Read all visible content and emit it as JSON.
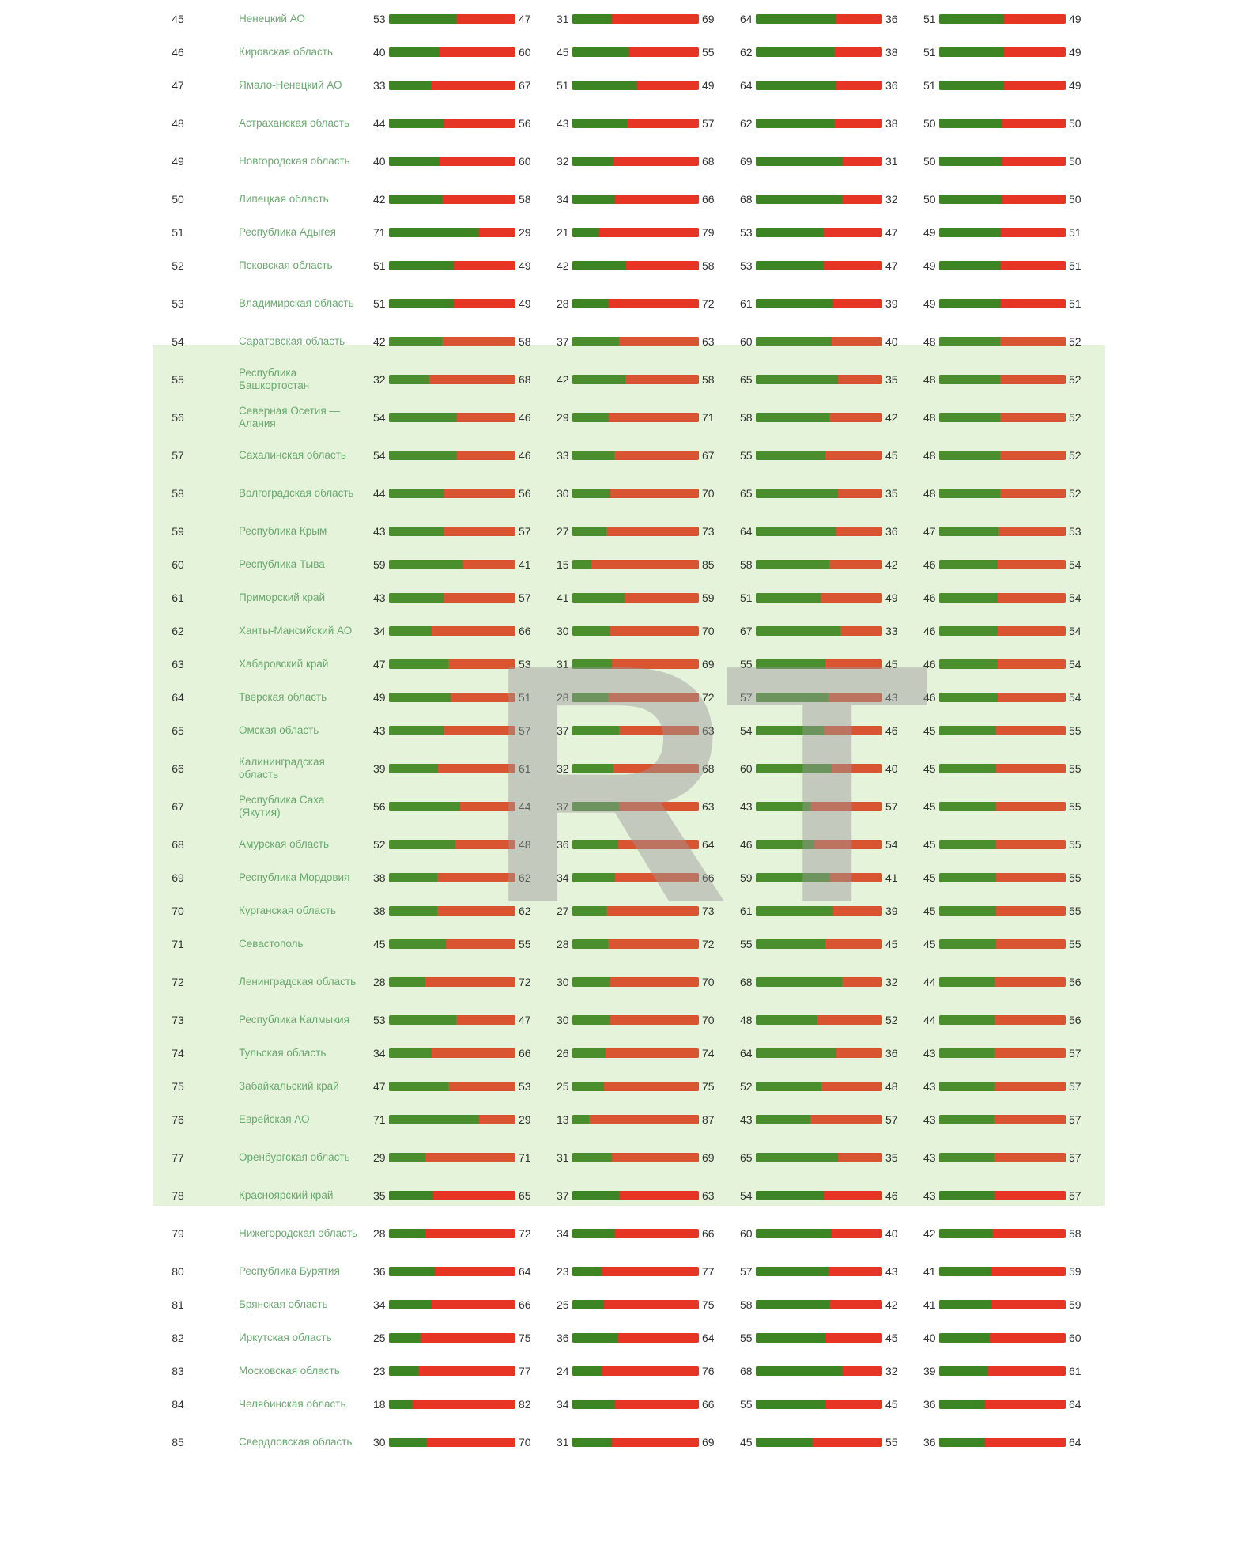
{
  "chart_data": {
    "type": "table",
    "columns_per_row": 4,
    "rows": [
      {
        "rank": 45,
        "region": "Ненецкий АО",
        "metrics": [
          [
            53,
            47
          ],
          [
            31,
            69
          ],
          [
            64,
            36
          ],
          [
            51,
            49
          ]
        ]
      },
      {
        "rank": 46,
        "region": "Кировская область",
        "metrics": [
          [
            40,
            60
          ],
          [
            45,
            55
          ],
          [
            62,
            38
          ],
          [
            51,
            49
          ]
        ]
      },
      {
        "rank": 47,
        "region": "Ямало-Ненецкий АО",
        "metrics": [
          [
            33,
            67
          ],
          [
            51,
            49
          ],
          [
            64,
            36
          ],
          [
            51,
            49
          ]
        ]
      },
      {
        "rank": 48,
        "region": "Астраханская область",
        "metrics": [
          [
            44,
            56
          ],
          [
            43,
            57
          ],
          [
            62,
            38
          ],
          [
            50,
            50
          ]
        ]
      },
      {
        "rank": 49,
        "region": "Новгородская область",
        "metrics": [
          [
            40,
            60
          ],
          [
            32,
            68
          ],
          [
            69,
            31
          ],
          [
            50,
            50
          ]
        ]
      },
      {
        "rank": 50,
        "region": "Липецкая область",
        "metrics": [
          [
            42,
            58
          ],
          [
            34,
            66
          ],
          [
            68,
            32
          ],
          [
            50,
            50
          ]
        ]
      },
      {
        "rank": 51,
        "region": "Республика Адыгея",
        "metrics": [
          [
            71,
            29
          ],
          [
            21,
            79
          ],
          [
            53,
            47
          ],
          [
            49,
            51
          ]
        ]
      },
      {
        "rank": 52,
        "region": "Псковская область",
        "metrics": [
          [
            51,
            49
          ],
          [
            42,
            58
          ],
          [
            53,
            47
          ],
          [
            49,
            51
          ]
        ]
      },
      {
        "rank": 53,
        "region": "Владимирская область",
        "metrics": [
          [
            51,
            49
          ],
          [
            28,
            72
          ],
          [
            61,
            39
          ],
          [
            49,
            51
          ]
        ]
      },
      {
        "rank": 54,
        "region": "Саратовская область",
        "metrics": [
          [
            42,
            58
          ],
          [
            37,
            63
          ],
          [
            60,
            40
          ],
          [
            48,
            52
          ]
        ]
      },
      {
        "rank": 55,
        "region": "Республика Башкортостан",
        "metrics": [
          [
            32,
            68
          ],
          [
            42,
            58
          ],
          [
            65,
            35
          ],
          [
            48,
            52
          ]
        ]
      },
      {
        "rank": 56,
        "region": "Северная Осетия — Алания",
        "metrics": [
          [
            54,
            46
          ],
          [
            29,
            71
          ],
          [
            58,
            42
          ],
          [
            48,
            52
          ]
        ]
      },
      {
        "rank": 57,
        "region": "Сахалинская область",
        "metrics": [
          [
            54,
            46
          ],
          [
            33,
            67
          ],
          [
            55,
            45
          ],
          [
            48,
            52
          ]
        ]
      },
      {
        "rank": 58,
        "region": "Волгоградская область",
        "metrics": [
          [
            44,
            56
          ],
          [
            30,
            70
          ],
          [
            65,
            35
          ],
          [
            48,
            52
          ]
        ]
      },
      {
        "rank": 59,
        "region": "Республика Крым",
        "metrics": [
          [
            43,
            57
          ],
          [
            27,
            73
          ],
          [
            64,
            36
          ],
          [
            47,
            53
          ]
        ]
      },
      {
        "rank": 60,
        "region": "Республика Тыва",
        "metrics": [
          [
            59,
            41
          ],
          [
            15,
            85
          ],
          [
            58,
            42
          ],
          [
            46,
            54
          ]
        ]
      },
      {
        "rank": 61,
        "region": "Приморский край",
        "metrics": [
          [
            43,
            57
          ],
          [
            41,
            59
          ],
          [
            51,
            49
          ],
          [
            46,
            54
          ]
        ]
      },
      {
        "rank": 62,
        "region": "Ханты-Мансийский АО",
        "metrics": [
          [
            34,
            66
          ],
          [
            30,
            70
          ],
          [
            67,
            33
          ],
          [
            46,
            54
          ]
        ]
      },
      {
        "rank": 63,
        "region": "Хабаровский край",
        "metrics": [
          [
            47,
            53
          ],
          [
            31,
            69
          ],
          [
            55,
            45
          ],
          [
            46,
            54
          ]
        ]
      },
      {
        "rank": 64,
        "region": "Тверская область",
        "metrics": [
          [
            49,
            51
          ],
          [
            28,
            72
          ],
          [
            57,
            43
          ],
          [
            46,
            54
          ]
        ]
      },
      {
        "rank": 65,
        "region": "Омская область",
        "metrics": [
          [
            43,
            57
          ],
          [
            37,
            63
          ],
          [
            54,
            46
          ],
          [
            45,
            55
          ]
        ]
      },
      {
        "rank": 66,
        "region": "Калининградская область",
        "metrics": [
          [
            39,
            61
          ],
          [
            32,
            68
          ],
          [
            60,
            40
          ],
          [
            45,
            55
          ]
        ]
      },
      {
        "rank": 67,
        "region": "Республика Саха (Якутия)",
        "metrics": [
          [
            56,
            44
          ],
          [
            37,
            63
          ],
          [
            43,
            57
          ],
          [
            45,
            55
          ]
        ]
      },
      {
        "rank": 68,
        "region": "Амурская область",
        "metrics": [
          [
            52,
            48
          ],
          [
            36,
            64
          ],
          [
            46,
            54
          ],
          [
            45,
            55
          ]
        ]
      },
      {
        "rank": 69,
        "region": "Республика Мордовия",
        "metrics": [
          [
            38,
            62
          ],
          [
            34,
            66
          ],
          [
            59,
            41
          ],
          [
            45,
            55
          ]
        ]
      },
      {
        "rank": 70,
        "region": "Курганская область",
        "metrics": [
          [
            38,
            62
          ],
          [
            27,
            73
          ],
          [
            61,
            39
          ],
          [
            45,
            55
          ]
        ]
      },
      {
        "rank": 71,
        "region": "Севастополь",
        "metrics": [
          [
            45,
            55
          ],
          [
            28,
            72
          ],
          [
            55,
            45
          ],
          [
            45,
            55
          ]
        ]
      },
      {
        "rank": 72,
        "region": "Ленинградская область",
        "metrics": [
          [
            28,
            72
          ],
          [
            30,
            70
          ],
          [
            68,
            32
          ],
          [
            44,
            56
          ]
        ]
      },
      {
        "rank": 73,
        "region": "Республика Калмыкия",
        "metrics": [
          [
            53,
            47
          ],
          [
            30,
            70
          ],
          [
            48,
            52
          ],
          [
            44,
            56
          ]
        ]
      },
      {
        "rank": 74,
        "region": "Тульская область",
        "metrics": [
          [
            34,
            66
          ],
          [
            26,
            74
          ],
          [
            64,
            36
          ],
          [
            43,
            57
          ]
        ]
      },
      {
        "rank": 75,
        "region": "Забайкальский край",
        "metrics": [
          [
            47,
            53
          ],
          [
            25,
            75
          ],
          [
            52,
            48
          ],
          [
            43,
            57
          ]
        ]
      },
      {
        "rank": 76,
        "region": "Еврейская АО",
        "metrics": [
          [
            71,
            29
          ],
          [
            13,
            87
          ],
          [
            43,
            57
          ],
          [
            43,
            57
          ]
        ]
      },
      {
        "rank": 77,
        "region": "Оренбургская область",
        "metrics": [
          [
            29,
            71
          ],
          [
            31,
            69
          ],
          [
            65,
            35
          ],
          [
            43,
            57
          ]
        ]
      },
      {
        "rank": 78,
        "region": "Красноярский край",
        "metrics": [
          [
            35,
            65
          ],
          [
            37,
            63
          ],
          [
            54,
            46
          ],
          [
            43,
            57
          ]
        ]
      },
      {
        "rank": 79,
        "region": "Нижегородская область",
        "metrics": [
          [
            28,
            72
          ],
          [
            34,
            66
          ],
          [
            60,
            40
          ],
          [
            42,
            58
          ]
        ]
      },
      {
        "rank": 80,
        "region": "Республика Бурятия",
        "metrics": [
          [
            36,
            64
          ],
          [
            23,
            77
          ],
          [
            57,
            43
          ],
          [
            41,
            59
          ]
        ]
      },
      {
        "rank": 81,
        "region": "Брянская область",
        "metrics": [
          [
            34,
            66
          ],
          [
            25,
            75
          ],
          [
            58,
            42
          ],
          [
            41,
            59
          ]
        ]
      },
      {
        "rank": 82,
        "region": "Иркутская область",
        "metrics": [
          [
            25,
            75
          ],
          [
            36,
            64
          ],
          [
            55,
            45
          ],
          [
            40,
            60
          ]
        ]
      },
      {
        "rank": 83,
        "region": "Московская область",
        "metrics": [
          [
            23,
            77
          ],
          [
            24,
            76
          ],
          [
            68,
            32
          ],
          [
            39,
            61
          ]
        ]
      },
      {
        "rank": 84,
        "region": "Челябинская область",
        "metrics": [
          [
            18,
            82
          ],
          [
            34,
            66
          ],
          [
            55,
            45
          ],
          [
            36,
            64
          ]
        ]
      },
      {
        "rank": 85,
        "region": "Свердловская область",
        "metrics": [
          [
            30,
            70
          ],
          [
            31,
            69
          ],
          [
            45,
            55
          ],
          [
            36,
            64
          ]
        ]
      }
    ],
    "highlighted_ranks": [
      54,
      77
    ],
    "colors": {
      "positive": "#3c8424",
      "negative": "#e63525",
      "highlight_background": "#e5f3da",
      "region_text": "#6aaa70"
    },
    "watermark_text": "RT"
  }
}
